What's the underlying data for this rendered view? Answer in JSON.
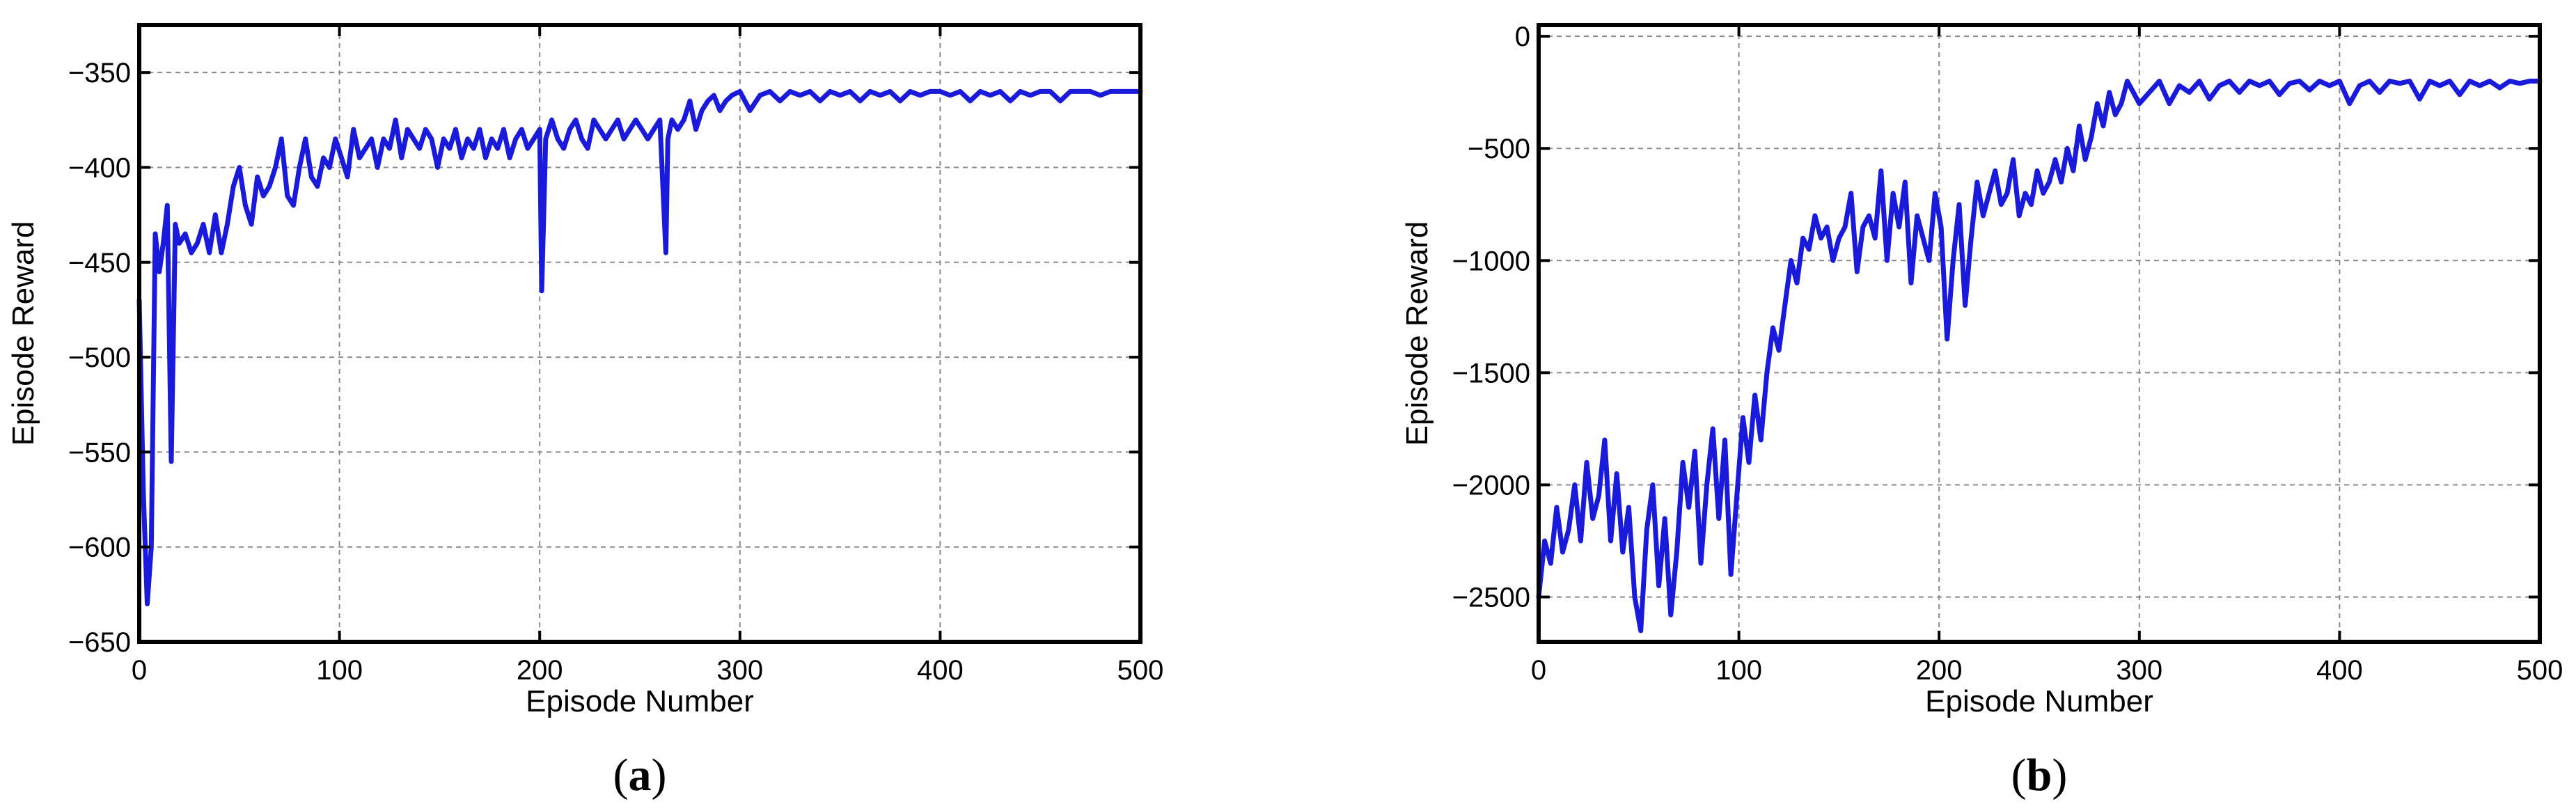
{
  "colors": {
    "series": "#1a1adb",
    "grid": "#8a8a8a",
    "frame": "#000000"
  },
  "chart_data": [
    {
      "type": "line",
      "caption": {
        "open": "(",
        "letter": "a",
        "close": ")"
      },
      "title": "",
      "xlabel": "Episode Number",
      "ylabel": "Episode Reward",
      "xlim": [
        0,
        500
      ],
      "ylim": [
        -650,
        -325
      ],
      "xticks": [
        0,
        100,
        200,
        300,
        400,
        500
      ],
      "yticks": [
        -650,
        -600,
        -550,
        -500,
        -450,
        -400,
        -350
      ],
      "grid": true,
      "legend": "none",
      "series": [
        {
          "x": [
            0,
            2,
            4,
            6,
            8,
            10,
            12,
            14,
            16,
            18,
            20,
            23,
            26,
            29,
            32,
            35,
            38,
            41,
            44,
            47,
            50,
            53,
            56,
            59,
            62,
            65,
            68,
            71,
            74,
            77,
            80,
            83,
            86,
            89,
            92,
            95,
            98,
            101,
            104,
            107,
            110,
            113,
            116,
            119,
            122,
            125,
            128,
            131,
            134,
            137,
            140,
            143,
            146,
            149,
            152,
            155,
            158,
            161,
            164,
            167,
            170,
            173,
            176,
            179,
            182,
            185,
            188,
            191,
            194,
            197,
            200,
            201,
            203,
            206,
            209,
            212,
            215,
            218,
            221,
            224,
            227,
            230,
            233,
            236,
            239,
            242,
            245,
            248,
            251,
            254,
            257,
            260,
            263,
            264,
            266,
            269,
            272,
            275,
            278,
            281,
            284,
            287,
            290,
            293,
            296,
            300,
            305,
            310,
            315,
            320,
            325,
            330,
            335,
            340,
            345,
            350,
            355,
            360,
            365,
            370,
            375,
            380,
            385,
            390,
            395,
            400,
            405,
            410,
            415,
            420,
            425,
            430,
            435,
            440,
            445,
            450,
            455,
            460,
            465,
            470,
            475,
            480,
            485,
            490,
            495,
            500
          ],
          "y": [
            -470,
            -570,
            -630,
            -600,
            -435,
            -455,
            -440,
            -420,
            -555,
            -430,
            -440,
            -435,
            -445,
            -440,
            -430,
            -445,
            -425,
            -445,
            -430,
            -410,
            -400,
            -420,
            -430,
            -405,
            -415,
            -410,
            -400,
            -385,
            -415,
            -420,
            -400,
            -385,
            -405,
            -410,
            -395,
            -400,
            -385,
            -395,
            -405,
            -380,
            -395,
            -390,
            -385,
            -400,
            -385,
            -390,
            -375,
            -395,
            -380,
            -385,
            -390,
            -380,
            -385,
            -400,
            -385,
            -390,
            -380,
            -395,
            -385,
            -390,
            -380,
            -395,
            -385,
            -390,
            -380,
            -395,
            -385,
            -380,
            -390,
            -385,
            -380,
            -465,
            -385,
            -375,
            -385,
            -390,
            -380,
            -375,
            -385,
            -390,
            -375,
            -380,
            -385,
            -380,
            -375,
            -385,
            -380,
            -375,
            -380,
            -385,
            -380,
            -375,
            -445,
            -385,
            -375,
            -380,
            -375,
            -365,
            -380,
            -370,
            -365,
            -362,
            -370,
            -365,
            -362,
            -360,
            -370,
            -362,
            -360,
            -365,
            -360,
            -362,
            -360,
            -365,
            -360,
            -362,
            -360,
            -365,
            -360,
            -362,
            -360,
            -365,
            -360,
            -362,
            -360,
            -360,
            -362,
            -360,
            -365,
            -360,
            -362,
            -360,
            -365,
            -360,
            -362,
            -360,
            -360,
            -365,
            -360,
            -360,
            -360,
            -362,
            -360,
            -360,
            -360,
            -360
          ]
        }
      ]
    },
    {
      "type": "line",
      "caption": {
        "open": "(",
        "letter": "b",
        "close": ")"
      },
      "title": "",
      "xlabel": "Episode Number",
      "ylabel": "Episode Reward",
      "xlim": [
        0,
        500
      ],
      "ylim": [
        -2700,
        50
      ],
      "xticks": [
        0,
        100,
        200,
        300,
        400,
        500
      ],
      "yticks": [
        -2500,
        -2000,
        -1500,
        -1000,
        -500,
        0
      ],
      "grid": true,
      "legend": "none",
      "series": [
        {
          "x": [
            0,
            3,
            6,
            9,
            12,
            15,
            18,
            21,
            24,
            27,
            30,
            33,
            36,
            39,
            42,
            45,
            48,
            51,
            54,
            57,
            60,
            63,
            66,
            69,
            72,
            75,
            78,
            81,
            84,
            87,
            90,
            93,
            96,
            99,
            102,
            105,
            108,
            111,
            114,
            117,
            120,
            123,
            126,
            129,
            132,
            135,
            138,
            141,
            144,
            147,
            150,
            153,
            156,
            159,
            162,
            165,
            168,
            171,
            174,
            177,
            180,
            183,
            186,
            189,
            192,
            195,
            198,
            201,
            204,
            207,
            210,
            213,
            216,
            219,
            222,
            225,
            228,
            231,
            234,
            237,
            240,
            243,
            246,
            249,
            252,
            255,
            258,
            261,
            264,
            267,
            270,
            273,
            276,
            279,
            282,
            285,
            288,
            291,
            294,
            297,
            300,
            305,
            310,
            315,
            320,
            325,
            330,
            335,
            340,
            345,
            350,
            355,
            360,
            365,
            370,
            375,
            380,
            385,
            390,
            395,
            400,
            405,
            410,
            415,
            420,
            425,
            430,
            435,
            440,
            445,
            450,
            455,
            460,
            465,
            470,
            475,
            480,
            485,
            490,
            495,
            500
          ],
          "y": [
            -2500,
            -2250,
            -2350,
            -2100,
            -2300,
            -2200,
            -2000,
            -2250,
            -1900,
            -2150,
            -2050,
            -1800,
            -2250,
            -1950,
            -2300,
            -2100,
            -2500,
            -2650,
            -2200,
            -2000,
            -2450,
            -2150,
            -2580,
            -2300,
            -1900,
            -2100,
            -1850,
            -2350,
            -2000,
            -1750,
            -2150,
            -1800,
            -2400,
            -2050,
            -1700,
            -1900,
            -1600,
            -1800,
            -1500,
            -1300,
            -1400,
            -1200,
            -1000,
            -1100,
            -900,
            -950,
            -800,
            -900,
            -850,
            -1000,
            -900,
            -850,
            -700,
            -1050,
            -850,
            -800,
            -900,
            -600,
            -1000,
            -700,
            -850,
            -650,
            -1100,
            -800,
            -900,
            -1000,
            -700,
            -850,
            -1350,
            -1000,
            -750,
            -1200,
            -900,
            -650,
            -800,
            -700,
            -600,
            -750,
            -700,
            -550,
            -800,
            -700,
            -750,
            -600,
            -700,
            -650,
            -550,
            -650,
            -500,
            -600,
            -400,
            -550,
            -450,
            -300,
            -400,
            -250,
            -350,
            -300,
            -200,
            -250,
            -300,
            -250,
            -200,
            -300,
            -220,
            -250,
            -200,
            -280,
            -220,
            -200,
            -250,
            -200,
            -220,
            -200,
            -260,
            -210,
            -200,
            -240,
            -200,
            -220,
            -200,
            -300,
            -220,
            -200,
            -250,
            -200,
            -210,
            -200,
            -280,
            -200,
            -220,
            -200,
            -260,
            -200,
            -220,
            -200,
            -230,
            -200,
            -210,
            -200,
            -200
          ]
        }
      ]
    }
  ]
}
